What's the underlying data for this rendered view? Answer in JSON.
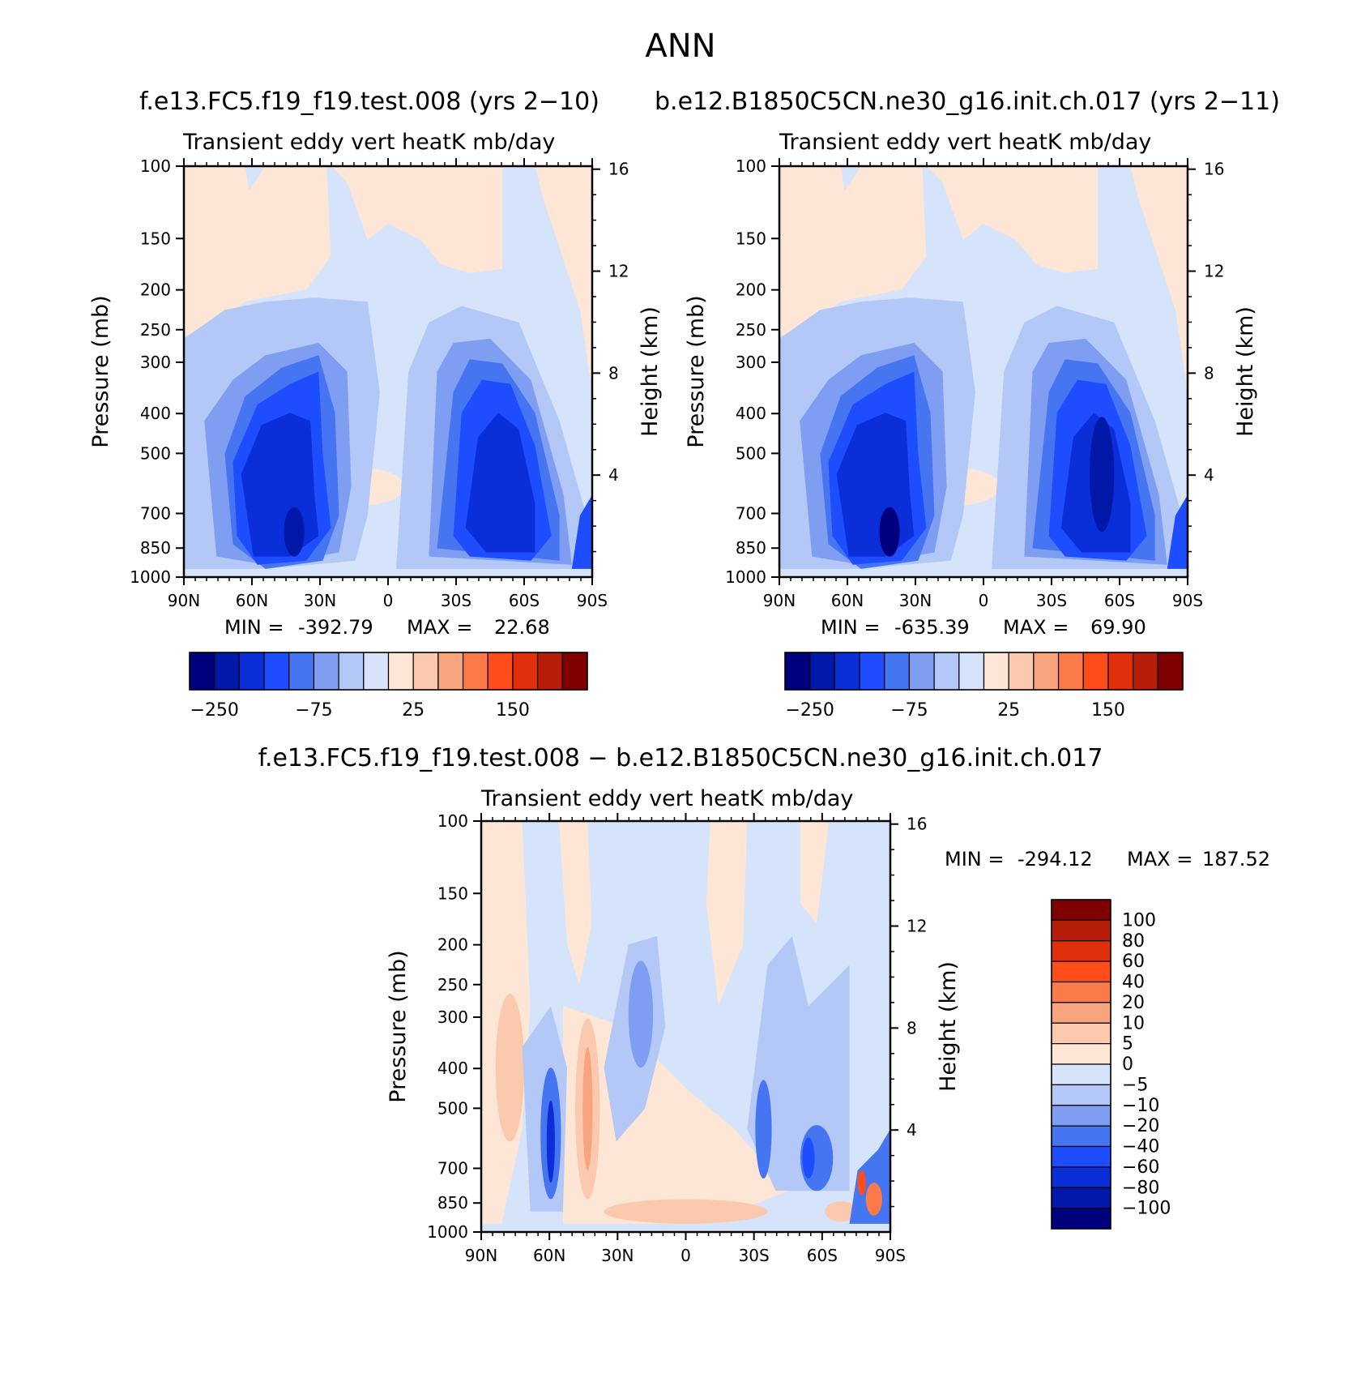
{
  "page_title": "ANN",
  "colors": {
    "blue9": "#00007f",
    "blue8": "#0018a8",
    "blue7": "#0a2fd8",
    "blue6": "#1e4dff",
    "blue5": "#4575f0",
    "blue4": "#7f9ef2",
    "blue3": "#b3c8f7",
    "blue2": "#d5e4fb",
    "red1": "#fde6d6",
    "red2": "#fbc9ad",
    "red3": "#f7a47f",
    "red4": "#fb7a49",
    "red5": "#ff4d1a",
    "red6": "#e0300b",
    "red7": "#b61e0a",
    "red8": "#7f0000"
  },
  "chart_data": [
    {
      "type": "heatmap",
      "case_title": "f.e13.FC5.f19_f19.test.008 (yrs 2−10)",
      "title": "Transient eddy vert heatK mb/day",
      "xlabel": "",
      "ylabel": "Pressure (mb)",
      "y2label": "Height (km)",
      "x_ticklabels": [
        "90N",
        "60N",
        "30N",
        "0",
        "30S",
        "60S",
        "90S"
      ],
      "y_ticklabels": [
        "100",
        "150",
        "200",
        "250",
        "300",
        "400",
        "500",
        "700",
        "850",
        "1000"
      ],
      "y2_ticklabels": [
        "16",
        "12",
        "8",
        "4"
      ],
      "xlim": [
        90,
        -90
      ],
      "ylim": [
        1000,
        100
      ],
      "y_scale": "log",
      "min": "-392.79",
      "max": "22.68",
      "min_label": "MIN =",
      "max_label": "MAX =",
      "colorbar": {
        "orientation": "horizontal",
        "levels": [
          -250,
          -200,
          -150,
          -100,
          -75,
          -50,
          -25,
          0,
          25,
          50,
          75,
          100,
          150,
          200,
          250
        ],
        "tick_labels": [
          "−250",
          "−75",
          "25",
          "150"
        ]
      }
    },
    {
      "type": "heatmap",
      "case_title": "b.e12.B1850C5CN.ne30_g16.init.ch.017 (yrs 2−11)",
      "title": "Transient eddy vert heatK mb/day",
      "xlabel": "",
      "ylabel": "Pressure (mb)",
      "y2label": "Height (km)",
      "x_ticklabels": [
        "90N",
        "60N",
        "30N",
        "0",
        "30S",
        "60S",
        "90S"
      ],
      "y_ticklabels": [
        "100",
        "150",
        "200",
        "250",
        "300",
        "400",
        "500",
        "700",
        "850",
        "1000"
      ],
      "y2_ticklabels": [
        "16",
        "12",
        "8",
        "4"
      ],
      "xlim": [
        90,
        -90
      ],
      "ylim": [
        1000,
        100
      ],
      "y_scale": "log",
      "min": "-635.39",
      "max": "69.90",
      "min_label": "MIN =",
      "max_label": "MAX =",
      "colorbar": {
        "orientation": "horizontal",
        "levels": [
          -250,
          -200,
          -150,
          -100,
          -75,
          -50,
          -25,
          0,
          25,
          50,
          75,
          100,
          150,
          200,
          250
        ],
        "tick_labels": [
          "−250",
          "−75",
          "25",
          "150"
        ]
      }
    },
    {
      "type": "heatmap",
      "case_title": "f.e13.FC5.f19_f19.test.008 − b.e12.B1850C5CN.ne30_g16.init.ch.017",
      "title": "Transient eddy vert heatK mb/day",
      "xlabel": "",
      "ylabel": "Pressure (mb)",
      "y2label": "Height (km)",
      "x_ticklabels": [
        "90N",
        "60N",
        "30N",
        "0",
        "30S",
        "60S",
        "90S"
      ],
      "y_ticklabels": [
        "100",
        "150",
        "200",
        "250",
        "300",
        "400",
        "500",
        "700",
        "850",
        "1000"
      ],
      "y2_ticklabels": [
        "16",
        "12",
        "8",
        "4"
      ],
      "xlim": [
        90,
        -90
      ],
      "ylim": [
        1000,
        100
      ],
      "y_scale": "log",
      "min": "-294.12",
      "max": "187.52",
      "min_label": "MIN =",
      "max_label": "MAX =",
      "colorbar": {
        "orientation": "vertical",
        "levels": [
          100,
          80,
          60,
          40,
          20,
          10,
          5,
          0,
          -5,
          -10,
          -20,
          -40,
          -60,
          -80,
          -100
        ],
        "tick_labels": [
          "100",
          "80",
          "60",
          "40",
          "20",
          "10",
          "5",
          "0",
          "−5",
          "−10",
          "−20",
          "−40",
          "−60",
          "−80",
          "−100"
        ]
      }
    }
  ]
}
